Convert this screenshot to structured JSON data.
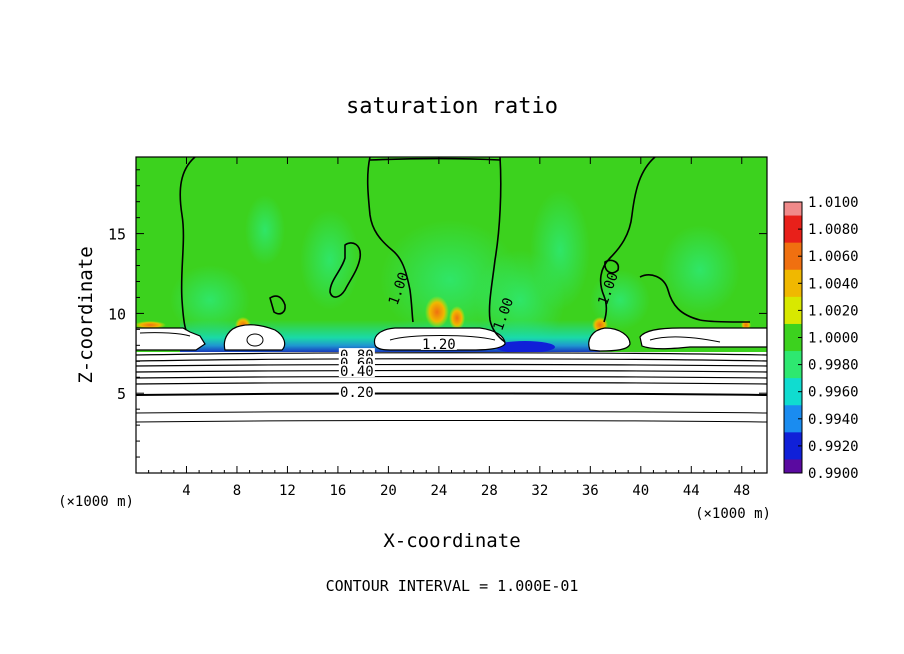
{
  "chart_data": {
    "type": "heatmap",
    "title": "saturation ratio",
    "xlabel": "X-coordinate",
    "ylabel": "Z-coordinate",
    "x_unit": "(×1000 m)",
    "x_unit_right": "(×1000 m)",
    "footer": "CONTOUR INTERVAL = 1.000E-01",
    "xlim": [
      0,
      50
    ],
    "ylim": [
      0,
      19.8
    ],
    "x_ticks": [
      4,
      8,
      12,
      16,
      20,
      24,
      28,
      32,
      36,
      40,
      44,
      48
    ],
    "y_ticks": [
      5,
      10,
      15
    ],
    "colorbar": {
      "ticks": [
        "1.0100",
        "1.0080",
        "1.0060",
        "1.0040",
        "1.0020",
        "1.0000",
        "0.9980",
        "0.9960",
        "0.9940",
        "0.9920",
        "0.9900"
      ],
      "colors": [
        "#f08a8a",
        "#e8201a",
        "#f07010",
        "#f0b800",
        "#d8e800",
        "#3cd21e",
        "#2ee870",
        "#10dcd0",
        "#1a8cf0",
        "#1020d8",
        "#5a0aa0"
      ]
    },
    "contour_labels": [
      {
        "text": "1.00",
        "x": 21,
        "y": 11.5
      },
      {
        "text": "1.00",
        "x": 29.3,
        "y": 9.9
      },
      {
        "text": "1.00",
        "x": 37.6,
        "y": 11.5
      },
      {
        "text": "1.20",
        "x": 24,
        "y": 7.9
      },
      {
        "text": "0.80",
        "x": 17.5,
        "y": 7.2
      },
      {
        "text": "0.60",
        "x": 17.5,
        "y": 6.7
      },
      {
        "text": "0.40",
        "x": 17.5,
        "y": 6.2
      },
      {
        "text": "0.20",
        "x": 17.5,
        "y": 4.9
      }
    ],
    "stratified_contours": [
      3.3,
      3.6,
      4.9,
      5.6,
      6.0,
      6.4,
      6.7,
      7.0,
      7.3,
      7.6
    ]
  }
}
